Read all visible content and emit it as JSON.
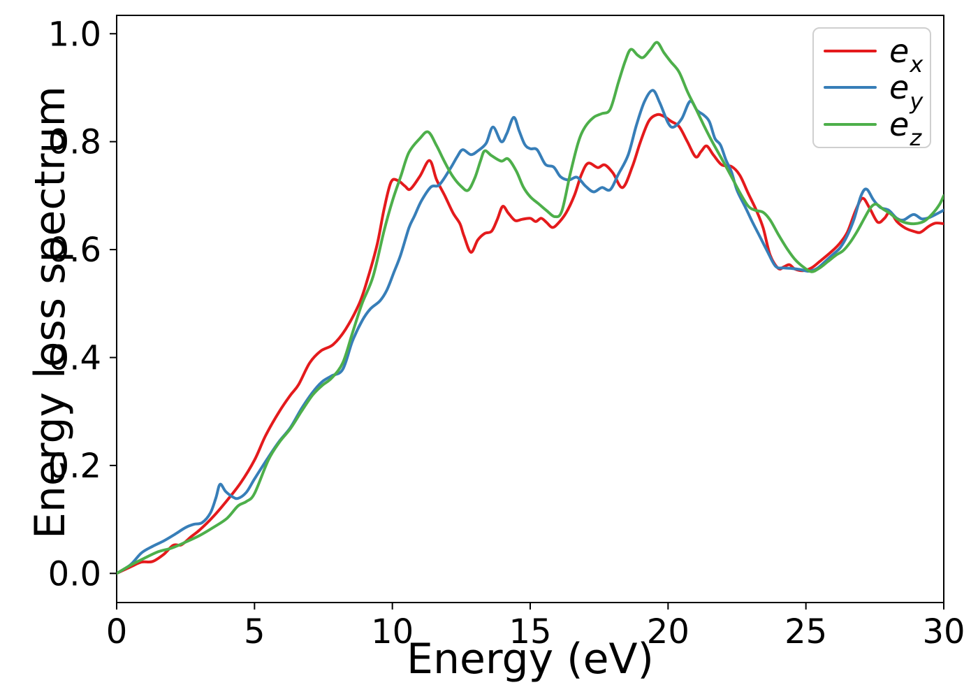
{
  "chart_data": {
    "type": "line",
    "title": "",
    "xlabel": "Energy (eV)",
    "ylabel": "Energy loss spectrum",
    "xlim": [
      0,
      30
    ],
    "ylim": [
      -0.054,
      1.034
    ],
    "xticks": [
      0,
      5,
      10,
      15,
      20,
      25,
      30
    ],
    "xticklabels": [
      "0",
      "5",
      "10",
      "15",
      "20",
      "25",
      "30"
    ],
    "yticks": [
      0.0,
      0.2,
      0.4,
      0.6,
      0.8,
      1.0
    ],
    "yticklabels": [
      "0.0",
      "0.2",
      "0.4",
      "0.6",
      "0.8",
      "1.0"
    ],
    "grid": false,
    "legend_position": "upper right",
    "axis_color": "#000000",
    "background_color": "#ffffff",
    "series": [
      {
        "name": "e_x",
        "label_main": "e",
        "label_sub": "x",
        "color": "#e41a1c",
        "points": [
          [
            0,
            0
          ],
          [
            0.5,
            0.012
          ],
          [
            0.9,
            0.021
          ],
          [
            1.3,
            0.022
          ],
          [
            1.7,
            0.035
          ],
          [
            2.05,
            0.052
          ],
          [
            2.35,
            0.053
          ],
          [
            2.7,
            0.068
          ],
          [
            3.0,
            0.08
          ],
          [
            3.5,
            0.105
          ],
          [
            4.0,
            0.135
          ],
          [
            4.5,
            0.168
          ],
          [
            5.0,
            0.21
          ],
          [
            5.4,
            0.255
          ],
          [
            5.9,
            0.3
          ],
          [
            6.3,
            0.33
          ],
          [
            6.6,
            0.35
          ],
          [
            7.0,
            0.39
          ],
          [
            7.4,
            0.412
          ],
          [
            7.85,
            0.424
          ],
          [
            8.3,
            0.452
          ],
          [
            8.8,
            0.5
          ],
          [
            9.1,
            0.545
          ],
          [
            9.45,
            0.61
          ],
          [
            9.7,
            0.675
          ],
          [
            9.95,
            0.725
          ],
          [
            10.2,
            0.728
          ],
          [
            10.45,
            0.718
          ],
          [
            10.65,
            0.712
          ],
          [
            11.0,
            0.736
          ],
          [
            11.35,
            0.765
          ],
          [
            11.6,
            0.73
          ],
          [
            11.9,
            0.7
          ],
          [
            12.2,
            0.668
          ],
          [
            12.45,
            0.648
          ],
          [
            12.6,
            0.625
          ],
          [
            12.85,
            0.595
          ],
          [
            13.1,
            0.618
          ],
          [
            13.35,
            0.63
          ],
          [
            13.6,
            0.634
          ],
          [
            13.8,
            0.655
          ],
          [
            14.0,
            0.68
          ],
          [
            14.2,
            0.668
          ],
          [
            14.45,
            0.654
          ],
          [
            14.7,
            0.656
          ],
          [
            15.0,
            0.658
          ],
          [
            15.2,
            0.652
          ],
          [
            15.4,
            0.658
          ],
          [
            15.6,
            0.65
          ],
          [
            15.8,
            0.641
          ],
          [
            16.0,
            0.648
          ],
          [
            16.3,
            0.668
          ],
          [
            16.6,
            0.7
          ],
          [
            16.85,
            0.738
          ],
          [
            17.1,
            0.76
          ],
          [
            17.45,
            0.752
          ],
          [
            17.7,
            0.757
          ],
          [
            18.0,
            0.742
          ],
          [
            18.35,
            0.715
          ],
          [
            18.7,
            0.753
          ],
          [
            19.0,
            0.8
          ],
          [
            19.3,
            0.838
          ],
          [
            19.6,
            0.85
          ],
          [
            19.85,
            0.847
          ],
          [
            20.1,
            0.838
          ],
          [
            20.4,
            0.828
          ],
          [
            20.7,
            0.8
          ],
          [
            21.0,
            0.772
          ],
          [
            21.2,
            0.782
          ],
          [
            21.4,
            0.792
          ],
          [
            21.65,
            0.775
          ],
          [
            21.95,
            0.757
          ],
          [
            22.3,
            0.754
          ],
          [
            22.6,
            0.738
          ],
          [
            22.9,
            0.705
          ],
          [
            23.2,
            0.673
          ],
          [
            23.45,
            0.64
          ],
          [
            23.7,
            0.59
          ],
          [
            24.0,
            0.565
          ],
          [
            24.2,
            0.568
          ],
          [
            24.4,
            0.572
          ],
          [
            24.6,
            0.564
          ],
          [
            24.9,
            0.561
          ],
          [
            25.2,
            0.566
          ],
          [
            25.5,
            0.578
          ],
          [
            25.9,
            0.595
          ],
          [
            26.2,
            0.61
          ],
          [
            26.5,
            0.632
          ],
          [
            26.8,
            0.672
          ],
          [
            27.05,
            0.695
          ],
          [
            27.3,
            0.678
          ],
          [
            27.6,
            0.651
          ],
          [
            27.85,
            0.658
          ],
          [
            28.05,
            0.67
          ],
          [
            28.3,
            0.652
          ],
          [
            28.6,
            0.64
          ],
          [
            28.9,
            0.634
          ],
          [
            29.15,
            0.632
          ],
          [
            29.45,
            0.643
          ],
          [
            29.7,
            0.649
          ],
          [
            30,
            0.648
          ]
        ]
      },
      {
        "name": "e_y",
        "label_main": "e",
        "label_sub": "y",
        "color": "#377eb8",
        "points": [
          [
            0,
            0
          ],
          [
            0.5,
            0.016
          ],
          [
            0.9,
            0.038
          ],
          [
            1.3,
            0.05
          ],
          [
            1.7,
            0.06
          ],
          [
            2.1,
            0.072
          ],
          [
            2.5,
            0.085
          ],
          [
            2.8,
            0.091
          ],
          [
            3.1,
            0.094
          ],
          [
            3.4,
            0.112
          ],
          [
            3.6,
            0.14
          ],
          [
            3.75,
            0.165
          ],
          [
            3.95,
            0.152
          ],
          [
            4.2,
            0.142
          ],
          [
            4.4,
            0.139
          ],
          [
            4.7,
            0.15
          ],
          [
            5.0,
            0.175
          ],
          [
            5.5,
            0.215
          ],
          [
            5.9,
            0.245
          ],
          [
            6.3,
            0.27
          ],
          [
            6.7,
            0.305
          ],
          [
            7.1,
            0.335
          ],
          [
            7.45,
            0.355
          ],
          [
            7.8,
            0.366
          ],
          [
            8.2,
            0.378
          ],
          [
            8.55,
            0.43
          ],
          [
            8.9,
            0.468
          ],
          [
            9.2,
            0.49
          ],
          [
            9.55,
            0.505
          ],
          [
            9.8,
            0.525
          ],
          [
            10.05,
            0.557
          ],
          [
            10.3,
            0.59
          ],
          [
            10.6,
            0.64
          ],
          [
            10.8,
            0.662
          ],
          [
            11.05,
            0.69
          ],
          [
            11.4,
            0.716
          ],
          [
            11.7,
            0.72
          ],
          [
            12.1,
            0.75
          ],
          [
            12.35,
            0.772
          ],
          [
            12.55,
            0.785
          ],
          [
            12.85,
            0.776
          ],
          [
            13.1,
            0.783
          ],
          [
            13.4,
            0.797
          ],
          [
            13.65,
            0.827
          ],
          [
            13.95,
            0.8
          ],
          [
            14.15,
            0.815
          ],
          [
            14.4,
            0.845
          ],
          [
            14.6,
            0.82
          ],
          [
            14.8,
            0.795
          ],
          [
            15.0,
            0.787
          ],
          [
            15.25,
            0.785
          ],
          [
            15.55,
            0.758
          ],
          [
            15.85,
            0.753
          ],
          [
            16.1,
            0.735
          ],
          [
            16.4,
            0.729
          ],
          [
            16.7,
            0.734
          ],
          [
            17.0,
            0.718
          ],
          [
            17.3,
            0.707
          ],
          [
            17.6,
            0.715
          ],
          [
            17.9,
            0.711
          ],
          [
            18.2,
            0.74
          ],
          [
            18.55,
            0.775
          ],
          [
            18.85,
            0.83
          ],
          [
            19.15,
            0.875
          ],
          [
            19.45,
            0.895
          ],
          [
            19.7,
            0.872
          ],
          [
            20.0,
            0.835
          ],
          [
            20.2,
            0.827
          ],
          [
            20.5,
            0.843
          ],
          [
            20.8,
            0.875
          ],
          [
            21.05,
            0.858
          ],
          [
            21.3,
            0.849
          ],
          [
            21.5,
            0.837
          ],
          [
            21.7,
            0.806
          ],
          [
            21.9,
            0.794
          ],
          [
            22.1,
            0.766
          ],
          [
            22.3,
            0.744
          ],
          [
            22.5,
            0.71
          ],
          [
            22.8,
            0.679
          ],
          [
            23.05,
            0.652
          ],
          [
            23.3,
            0.627
          ],
          [
            23.6,
            0.597
          ],
          [
            23.9,
            0.569
          ],
          [
            24.2,
            0.566
          ],
          [
            24.5,
            0.565
          ],
          [
            24.8,
            0.563
          ],
          [
            25.1,
            0.56
          ],
          [
            25.4,
            0.565
          ],
          [
            25.7,
            0.578
          ],
          [
            26.0,
            0.592
          ],
          [
            26.25,
            0.604
          ],
          [
            26.5,
            0.626
          ],
          [
            26.75,
            0.657
          ],
          [
            27.0,
            0.7
          ],
          [
            27.2,
            0.712
          ],
          [
            27.45,
            0.692
          ],
          [
            27.7,
            0.678
          ],
          [
            28.0,
            0.673
          ],
          [
            28.3,
            0.658
          ],
          [
            28.55,
            0.655
          ],
          [
            28.9,
            0.665
          ],
          [
            29.2,
            0.657
          ],
          [
            29.45,
            0.659
          ],
          [
            29.7,
            0.665
          ],
          [
            30,
            0.673
          ]
        ]
      },
      {
        "name": "e_z",
        "label_main": "e",
        "label_sub": "z",
        "color": "#4daf4a",
        "points": [
          [
            0,
            0
          ],
          [
            0.5,
            0.015
          ],
          [
            1.0,
            0.028
          ],
          [
            1.5,
            0.04
          ],
          [
            2.0,
            0.047
          ],
          [
            2.5,
            0.058
          ],
          [
            3.0,
            0.07
          ],
          [
            3.5,
            0.085
          ],
          [
            4.0,
            0.102
          ],
          [
            4.4,
            0.125
          ],
          [
            4.7,
            0.133
          ],
          [
            5.0,
            0.148
          ],
          [
            5.5,
            0.21
          ],
          [
            5.9,
            0.243
          ],
          [
            6.3,
            0.268
          ],
          [
            6.7,
            0.3
          ],
          [
            7.1,
            0.33
          ],
          [
            7.45,
            0.348
          ],
          [
            7.8,
            0.362
          ],
          [
            8.2,
            0.39
          ],
          [
            8.55,
            0.445
          ],
          [
            8.9,
            0.5
          ],
          [
            9.3,
            0.55
          ],
          [
            9.7,
            0.635
          ],
          [
            10.0,
            0.69
          ],
          [
            10.3,
            0.735
          ],
          [
            10.6,
            0.78
          ],
          [
            11.0,
            0.806
          ],
          [
            11.3,
            0.818
          ],
          [
            11.6,
            0.793
          ],
          [
            11.9,
            0.762
          ],
          [
            12.2,
            0.735
          ],
          [
            12.5,
            0.717
          ],
          [
            12.75,
            0.71
          ],
          [
            13.0,
            0.734
          ],
          [
            13.2,
            0.765
          ],
          [
            13.35,
            0.783
          ],
          [
            13.6,
            0.774
          ],
          [
            13.95,
            0.764
          ],
          [
            14.2,
            0.768
          ],
          [
            14.5,
            0.745
          ],
          [
            14.75,
            0.716
          ],
          [
            15.0,
            0.698
          ],
          [
            15.3,
            0.685
          ],
          [
            15.6,
            0.672
          ],
          [
            15.9,
            0.661
          ],
          [
            16.15,
            0.672
          ],
          [
            16.45,
            0.74
          ],
          [
            16.75,
            0.8
          ],
          [
            17.0,
            0.828
          ],
          [
            17.3,
            0.845
          ],
          [
            17.6,
            0.852
          ],
          [
            17.9,
            0.86
          ],
          [
            18.2,
            0.91
          ],
          [
            18.45,
            0.95
          ],
          [
            18.65,
            0.971
          ],
          [
            18.9,
            0.96
          ],
          [
            19.1,
            0.956
          ],
          [
            19.35,
            0.97
          ],
          [
            19.6,
            0.984
          ],
          [
            19.85,
            0.965
          ],
          [
            20.1,
            0.948
          ],
          [
            20.4,
            0.929
          ],
          [
            20.7,
            0.893
          ],
          [
            21.0,
            0.862
          ],
          [
            21.3,
            0.83
          ],
          [
            21.6,
            0.8
          ],
          [
            21.95,
            0.768
          ],
          [
            22.3,
            0.735
          ],
          [
            22.6,
            0.706
          ],
          [
            22.9,
            0.681
          ],
          [
            23.15,
            0.673
          ],
          [
            23.45,
            0.669
          ],
          [
            23.7,
            0.655
          ],
          [
            24.0,
            0.628
          ],
          [
            24.3,
            0.603
          ],
          [
            24.6,
            0.582
          ],
          [
            24.9,
            0.568
          ],
          [
            25.2,
            0.559
          ],
          [
            25.5,
            0.566
          ],
          [
            25.8,
            0.578
          ],
          [
            26.1,
            0.59
          ],
          [
            26.35,
            0.598
          ],
          [
            26.6,
            0.613
          ],
          [
            26.85,
            0.633
          ],
          [
            27.1,
            0.656
          ],
          [
            27.35,
            0.678
          ],
          [
            27.55,
            0.684
          ],
          [
            27.8,
            0.675
          ],
          [
            28.05,
            0.667
          ],
          [
            28.3,
            0.657
          ],
          [
            28.6,
            0.65
          ],
          [
            28.95,
            0.648
          ],
          [
            29.3,
            0.653
          ],
          [
            29.6,
            0.667
          ],
          [
            29.85,
            0.684
          ],
          [
            30,
            0.7
          ]
        ]
      }
    ]
  }
}
